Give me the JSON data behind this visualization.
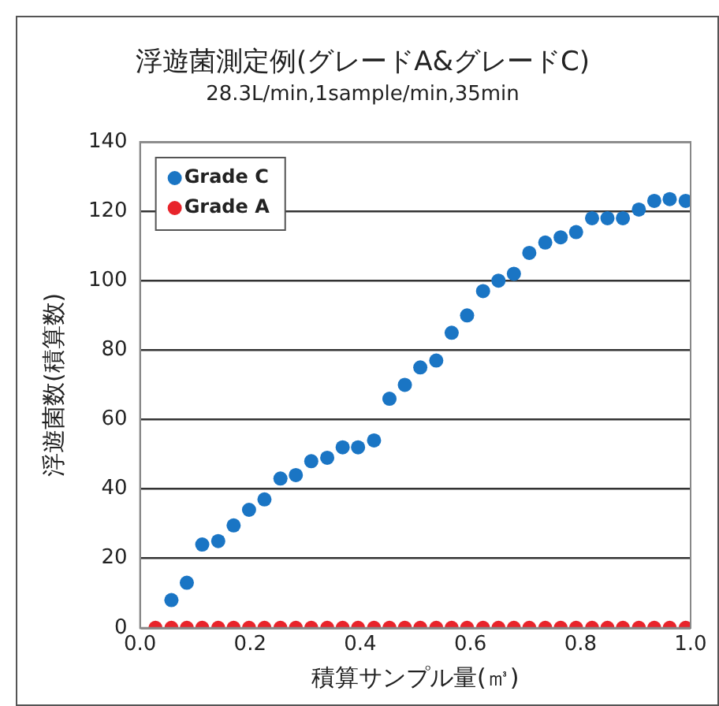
{
  "chart_data": {
    "type": "scatter",
    "title": "浮遊菌測定例(グレードA&グレードC)",
    "subtitle": "28.3L/min,1sample/min,35min",
    "xlabel": "積算サンプル量(㎥)",
    "ylabel": "浮遊菌数(積算数)",
    "xlim": [
      0,
      1
    ],
    "xticks": [
      {
        "value": 0,
        "label": "0.0"
      },
      {
        "value": 0.2,
        "label": "0.2"
      },
      {
        "value": 0.4,
        "label": "0.4"
      },
      {
        "value": 0.6,
        "label": "0.6"
      },
      {
        "value": 0.8,
        "label": "0.8"
      },
      {
        "value": 1,
        "label": "1.0"
      }
    ],
    "ylim": [
      0,
      140
    ],
    "yticks": [
      0,
      20,
      40,
      60,
      80,
      100,
      120,
      140
    ],
    "grid": "y",
    "legend": "top left",
    "marker": "circle",
    "series": [
      {
        "name": "Grade C",
        "color": "#1a75c4",
        "x": [
          0.057,
          0.085,
          0.113,
          0.142,
          0.17,
          0.198,
          0.226,
          0.255,
          0.283,
          0.311,
          0.34,
          0.368,
          0.396,
          0.425,
          0.453,
          0.481,
          0.509,
          0.538,
          0.566,
          0.594,
          0.623,
          0.651,
          0.679,
          0.707,
          0.736,
          0.764,
          0.792,
          0.821,
          0.849,
          0.877,
          0.906,
          0.934,
          0.962,
          0.991
        ],
        "values": [
          8,
          13,
          24,
          25,
          29.5,
          34,
          37,
          43,
          44,
          48,
          49,
          52,
          52,
          54,
          66,
          70,
          75,
          77,
          85,
          90,
          97,
          100,
          102,
          108,
          111,
          112.5,
          114,
          118,
          118,
          118,
          120.5,
          123,
          123.5,
          123
        ]
      },
      {
        "name": "Grade A",
        "color": "#e8242b",
        "x": [
          0.028,
          0.057,
          0.085,
          0.113,
          0.142,
          0.17,
          0.198,
          0.226,
          0.255,
          0.283,
          0.311,
          0.34,
          0.368,
          0.396,
          0.425,
          0.453,
          0.481,
          0.509,
          0.538,
          0.566,
          0.594,
          0.623,
          0.651,
          0.679,
          0.707,
          0.736,
          0.764,
          0.792,
          0.821,
          0.849,
          0.877,
          0.906,
          0.934,
          0.962,
          0.991
        ],
        "values": [
          0,
          0,
          0,
          0,
          0,
          0,
          0,
          0,
          0,
          0,
          0,
          0,
          0,
          0,
          0,
          0,
          0,
          0,
          0,
          0,
          0,
          0,
          0,
          0,
          0,
          0,
          0,
          0,
          0,
          0,
          0,
          0,
          0,
          0,
          0
        ]
      }
    ]
  }
}
